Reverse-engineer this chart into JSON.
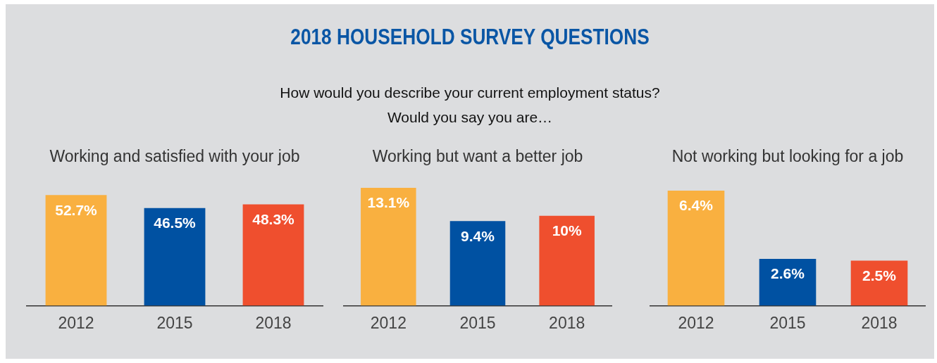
{
  "chart_data": [
    {
      "type": "other",
      "title": "2018 HOUSEHOLD SURVEY QUESTIONS",
      "subtitle": "How would you describe your current employment status?\nWould you say you are…"
    },
    {
      "type": "bar",
      "title": "Working and satisfied with your job",
      "categories": [
        "2012",
        "2015",
        "2018"
      ],
      "values": [
        52.7,
        46.5,
        48.3
      ],
      "colors": [
        "#f9b040",
        "#0051a2",
        "#ef4f2e"
      ],
      "value_labels": [
        "52.7%",
        "46.5%",
        "48.3%"
      ]
    },
    {
      "type": "bar",
      "title": "Working but want a better job",
      "categories": [
        "2012",
        "2015",
        "2018"
      ],
      "values": [
        13.1,
        9.4,
        10
      ],
      "colors": [
        "#f9b040",
        "#0051a2",
        "#ef4f2e"
      ],
      "value_labels": [
        "13.1%",
        "9.4%",
        "10%"
      ]
    },
    {
      "type": "bar",
      "title": "Not working but looking for a job",
      "categories": [
        "2012",
        "2015",
        "2018"
      ],
      "values": [
        6.4,
        2.6,
        2.5
      ],
      "colors": [
        "#f9b040",
        "#0051a2",
        "#ef4f2e"
      ],
      "value_labels": [
        "6.4%",
        "2.6%",
        "2.5%"
      ]
    }
  ]
}
